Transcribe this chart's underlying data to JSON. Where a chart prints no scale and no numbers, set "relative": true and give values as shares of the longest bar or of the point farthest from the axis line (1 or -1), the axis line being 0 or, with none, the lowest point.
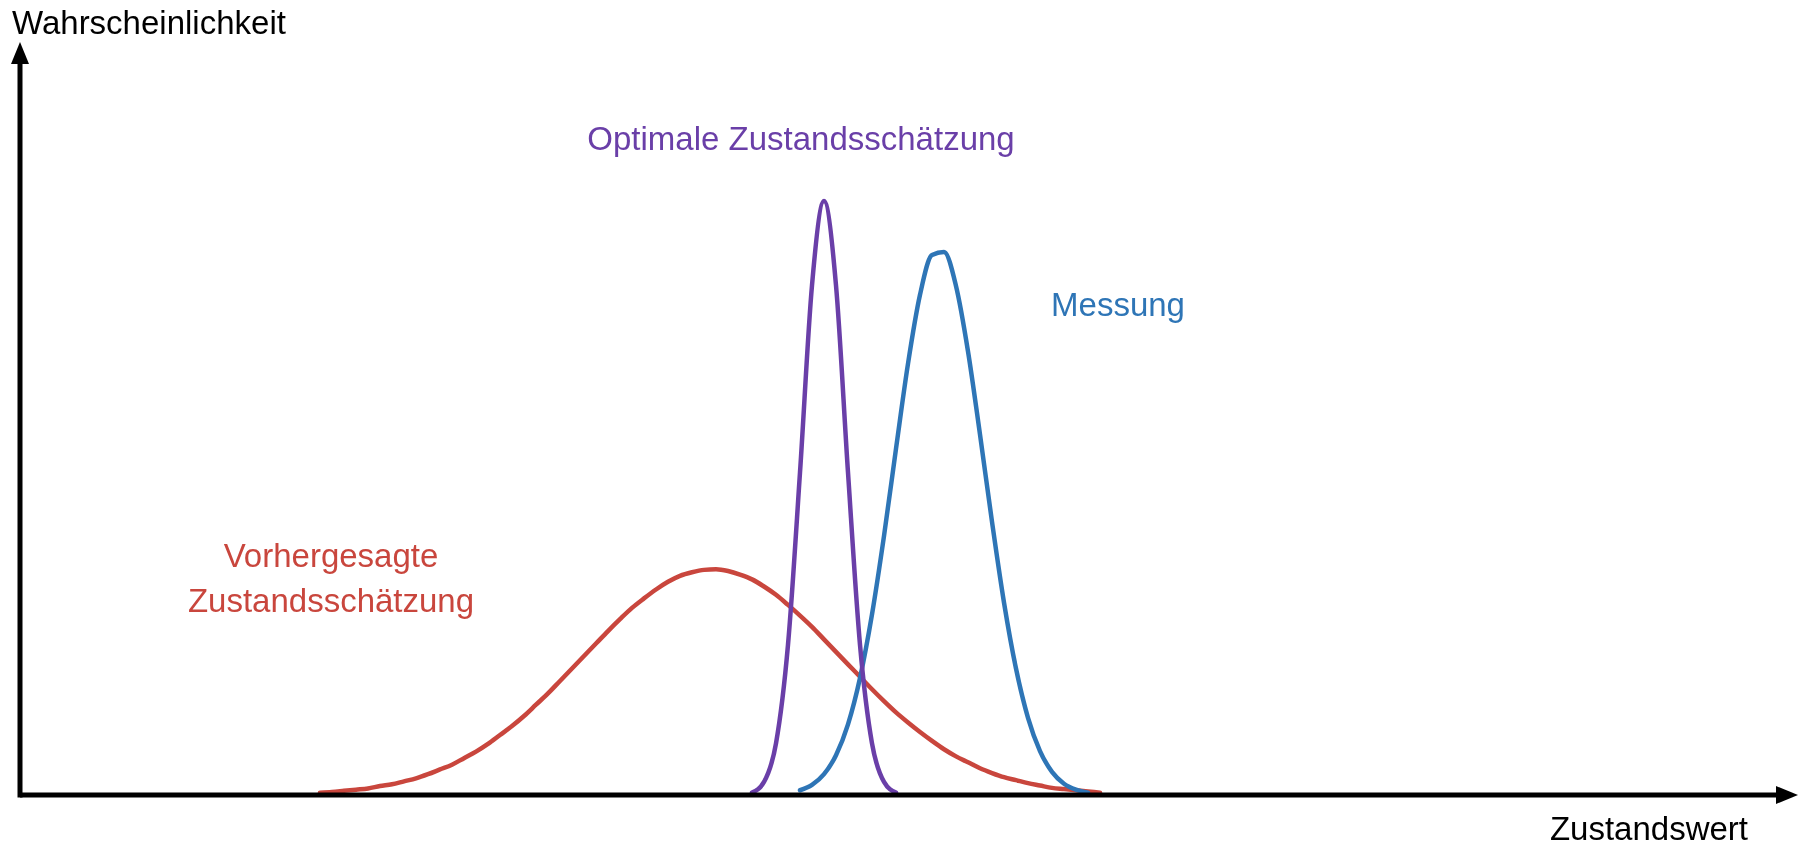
{
  "chart_data": {
    "type": "line",
    "relative": true,
    "xlabel": "Zustandswert",
    "ylabel": "Wahrscheinlichkeit",
    "categories": [
      null,
      null,
      null,
      null,
      null,
      null,
      null,
      null,
      null,
      null,
      null,
      null,
      null,
      null,
      null,
      null,
      null,
      null,
      null,
      null,
      null,
      null,
      null,
      null,
      null,
      null,
      null,
      null,
      null,
      null,
      null,
      null,
      null,
      null,
      null,
      null,
      null,
      null,
      null,
      null,
      null,
      null,
      null,
      null,
      null,
      null,
      null,
      null,
      null,
      null,
      null,
      null,
      null,
      null,
      null,
      null,
      null,
      null,
      null,
      null,
      null,
      null,
      null,
      null,
      null,
      null,
      null,
      null,
      null,
      null,
      null,
      null,
      null,
      null,
      null,
      null,
      null,
      null,
      null,
      null,
      null,
      null,
      null,
      null,
      null,
      null,
      null,
      null,
      null,
      null,
      null,
      null,
      null,
      null,
      null,
      null,
      null,
      null
    ],
    "series": [
      {
        "name": "Vorhergesagte Zustandsschätzung",
        "color": "#c9463d",
        "values": [
          null,
          null,
          null,
          null,
          null,
          null,
          0.004,
          0.005,
          0.007,
          0.009,
          0.011,
          0.015,
          0.018,
          0.023,
          0.028,
          0.035,
          0.043,
          0.051,
          0.062,
          0.073,
          0.086,
          0.101,
          0.116,
          0.133,
          0.152,
          0.171,
          0.192,
          0.213,
          0.234,
          0.255,
          0.276,
          0.296,
          0.315,
          0.331,
          0.346,
          0.359,
          0.369,
          0.375,
          0.379,
          0.38,
          0.377,
          0.371,
          0.363,
          0.351,
          0.337,
          0.32,
          0.302,
          0.283,
          0.262,
          0.241,
          0.22,
          0.199,
          0.178,
          0.158,
          0.139,
          0.122,
          0.106,
          0.091,
          0.077,
          0.065,
          0.055,
          0.045,
          0.037,
          0.03,
          0.025,
          0.02,
          0.016,
          0.012,
          0.01,
          0.008,
          0.006,
          0.004,
          null,
          null,
          null,
          null,
          null,
          null,
          null,
          null,
          null,
          null,
          null,
          null,
          null,
          null,
          null,
          null,
          null,
          null,
          null,
          null,
          null,
          null,
          null,
          null,
          null,
          null
        ]
      },
      {
        "name": "Messung",
        "color": "#2e75b6",
        "values": [
          null,
          null,
          null,
          null,
          null,
          null,
          null,
          null,
          null,
          null,
          null,
          null,
          null,
          null,
          null,
          null,
          null,
          null,
          null,
          null,
          null,
          null,
          null,
          null,
          null,
          null,
          null,
          null,
          null,
          null,
          null,
          null,
          null,
          null,
          null,
          null,
          null,
          null,
          null,
          null,
          null,
          null,
          null,
          null,
          null,
          null,
          0.008,
          0.017,
          0.035,
          0.067,
          0.119,
          0.197,
          0.304,
          0.436,
          0.583,
          0.726,
          0.842,
          0.909,
          0.914,
          0.857,
          0.747,
          0.607,
          0.46,
          0.324,
          0.213,
          0.13,
          0.074,
          0.039,
          0.019,
          0.009,
          0.004,
          null,
          null,
          null,
          null,
          null,
          null,
          null,
          null,
          null,
          null,
          null,
          null,
          null,
          null,
          null,
          null,
          null,
          null,
          null,
          null,
          null,
          null,
          null,
          null,
          null,
          null,
          null
        ]
      },
      {
        "name": "Optimale Zustandsschätzung",
        "color": "#6a3fa8",
        "values": [
          null,
          null,
          null,
          null,
          null,
          null,
          null,
          null,
          null,
          null,
          null,
          null,
          null,
          null,
          null,
          null,
          null,
          null,
          null,
          null,
          null,
          null,
          null,
          null,
          null,
          null,
          null,
          null,
          null,
          null,
          null,
          null,
          null,
          null,
          null,
          null,
          null,
          null,
          null,
          null,
          null,
          null,
          0.004,
          0.022,
          0.087,
          0.253,
          0.543,
          0.858,
          1,
          0.858,
          0.543,
          0.253,
          0.087,
          0.022,
          0.004,
          null,
          null,
          null,
          null,
          null,
          null,
          null,
          null,
          null,
          null,
          null,
          null,
          null,
          null,
          null,
          null,
          null,
          null,
          null,
          null,
          null,
          null,
          null,
          null,
          null,
          null,
          null,
          null,
          null,
          null,
          null,
          null,
          null,
          null,
          null,
          null,
          null,
          null,
          null,
          null,
          null,
          null,
          null
        ]
      }
    ]
  }
}
